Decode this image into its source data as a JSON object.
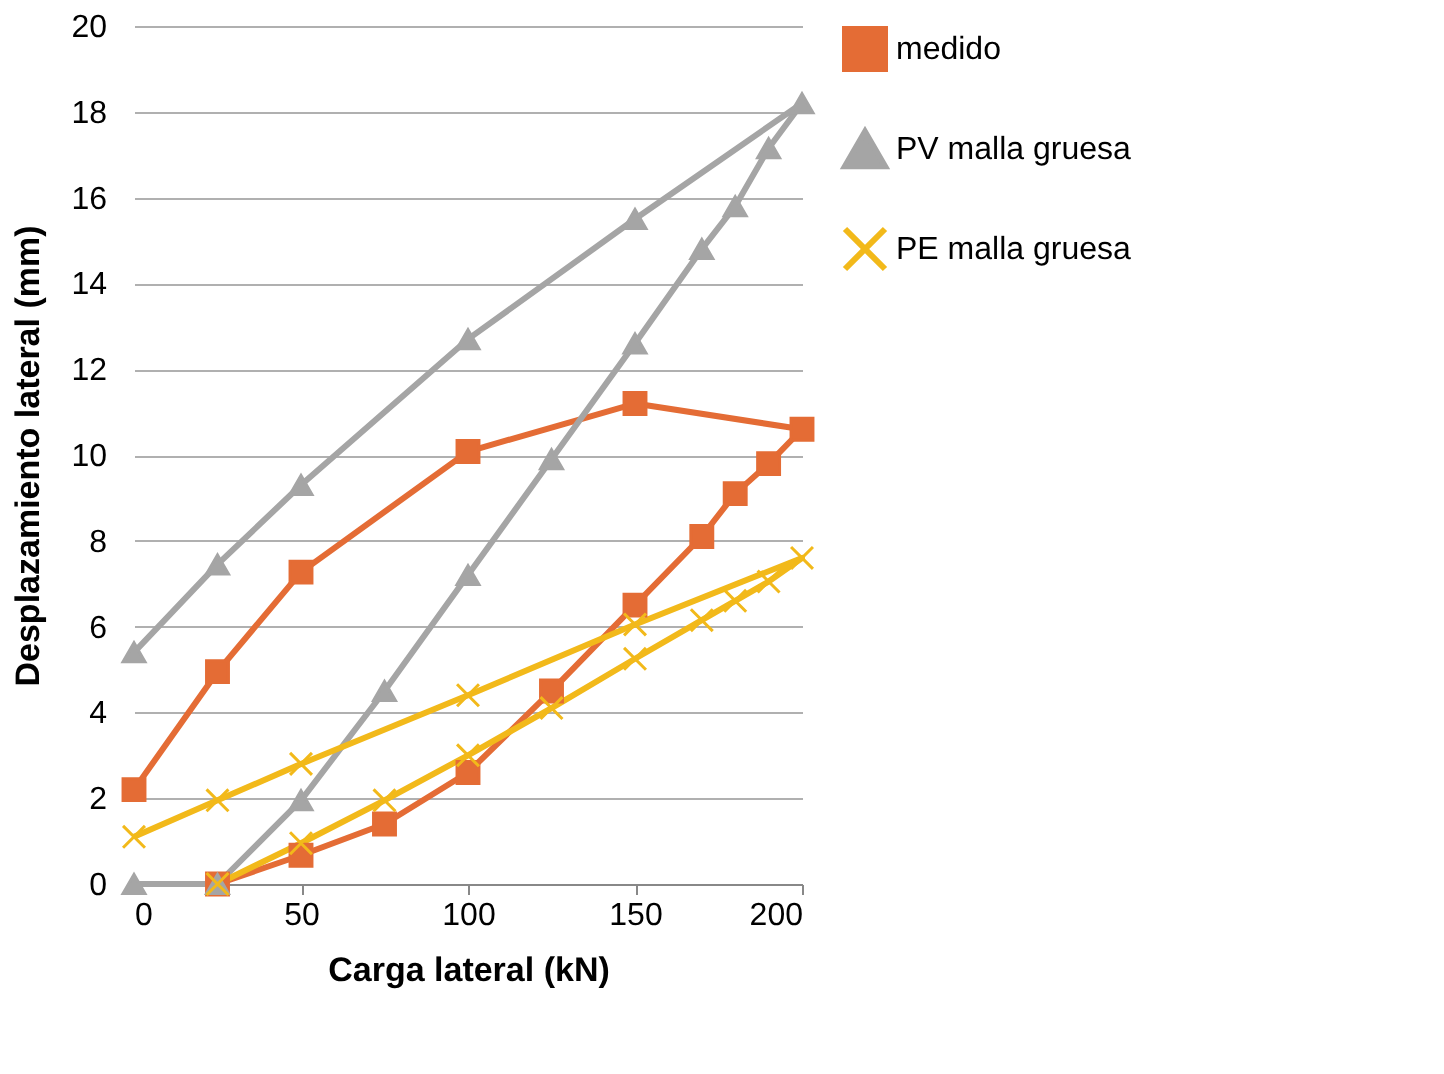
{
  "chart_data": {
    "type": "line",
    "xlabel": "Carga lateral (kN)",
    "ylabel": "Desplazamiento lateral (mm)",
    "xlim": [
      0,
      200
    ],
    "xticks": [
      0,
      50,
      100,
      150,
      200
    ],
    "ylim": [
      0,
      20
    ],
    "yticks": [
      0,
      2,
      4,
      6,
      8,
      10,
      12,
      14,
      16,
      18,
      20
    ],
    "grid": "y",
    "legend": "right",
    "series": [
      {
        "name": "medido",
        "color": "#e46c35",
        "marker": "square",
        "x": [
          0,
          25,
          50,
          100,
          150,
          200,
          190,
          180,
          170,
          150,
          125,
          100,
          75,
          50,
          25
        ],
        "values": [
          2.2,
          4.95,
          7.27,
          10.08,
          11.2,
          10.6,
          9.8,
          9.1,
          8.1,
          6.5,
          4.5,
          2.6,
          1.4,
          0.67,
          0
        ]
      },
      {
        "name": "PV malla gruesa",
        "color": "#a5a5a5",
        "marker": "triangle",
        "x": [
          0,
          25,
          50,
          100,
          150,
          200,
          190,
          180,
          170,
          150,
          125,
          100,
          75,
          50,
          25,
          0
        ],
        "values": [
          5.4,
          7.45,
          9.3,
          12.7,
          15.5,
          18.2,
          17.15,
          15.8,
          14.8,
          12.6,
          9.9,
          7.2,
          4.5,
          1.95,
          0,
          0
        ]
      },
      {
        "name": "PE malla gruesa",
        "color": "#f2b91a",
        "marker": "cross",
        "x": [
          0,
          25,
          50,
          100,
          150,
          200,
          190,
          180,
          170,
          150,
          125,
          100,
          75,
          50,
          25
        ],
        "values": [
          1.1,
          1.95,
          2.8,
          4.4,
          6.05,
          7.6,
          7.05,
          6.6,
          6.15,
          5.25,
          4.1,
          3.0,
          1.95,
          0.95,
          0
        ]
      }
    ]
  }
}
